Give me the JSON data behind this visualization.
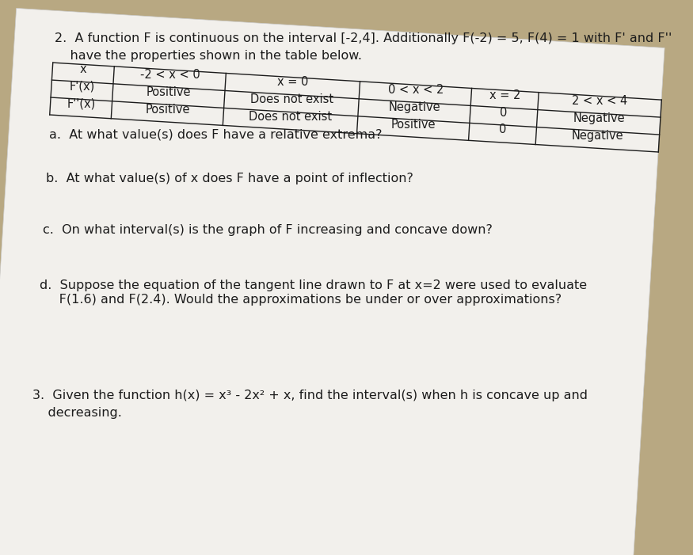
{
  "bg_color": "#b8a882",
  "paper_color": "#f2f0ec",
  "rotation_deg": 3.5,
  "intro_line1": "2.  A function F is continuous on the interval [-2,4]. Additionally F(-2) = 5, F(4) = 1 with F' and F''",
  "intro_line2": "    have the properties shown in the table below.",
  "table_headers": [
    "x",
    "-2 < x < 0",
    "x = 0",
    "0 < x < 2",
    "x = 2",
    "2 < x < 4"
  ],
  "table_row1_label": "F'(x)",
  "table_row2_label": "F''(x)",
  "table_data": [
    [
      "Positive",
      "Does not exist",
      "Negative",
      "0",
      "Negative"
    ],
    [
      "Positive",
      "Does not exist",
      "Positive",
      "0",
      "Negative"
    ]
  ],
  "qa": "a.  At what value(s) does F have a relative extrema?",
  "qb": "b.  At what value(s) of x does F have a point of inflection?",
  "qc": "c.  On what interval(s) is the graph of F increasing and concave down?",
  "qd1": "d.  Suppose the equation of the tangent line drawn to F at x=2 were used to evaluate",
  "qd2": "     F(1.6) and F(2.4). Would the approximations be under or over approximations?",
  "q3_1": "3.  Given the function h(x) = x³ - 2x² + x, find the interval(s) when h is concave up and",
  "q3_2": "    decreasing.",
  "font_size": 11.5,
  "table_font_size": 10.5,
  "text_color": "#1c1c1c"
}
